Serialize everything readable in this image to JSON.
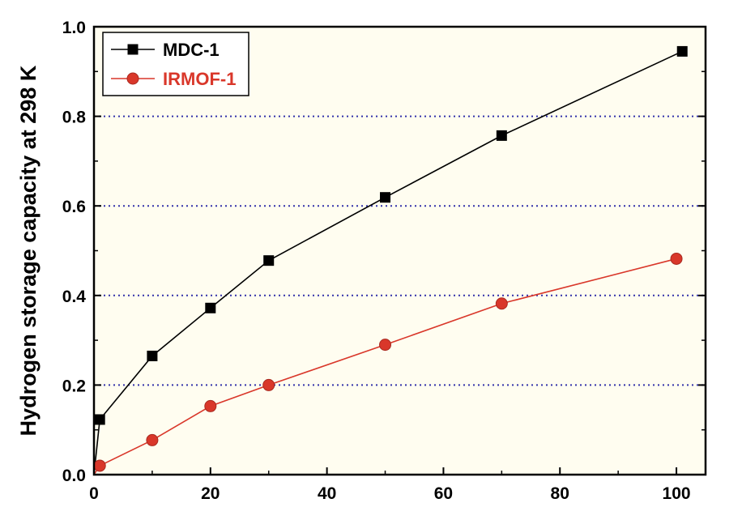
{
  "chart_data": {
    "type": "line",
    "title": "",
    "xlabel": "",
    "ylabel": "Hydrogen storage capacity at 298 K",
    "xlim": [
      0,
      105
    ],
    "ylim": [
      0,
      1.0
    ],
    "xticks": [
      0,
      20,
      40,
      60,
      80,
      100
    ],
    "yticks": [
      0.0,
      0.2,
      0.4,
      0.6,
      0.8,
      1.0
    ],
    "xtick_labels": [
      "0",
      "20",
      "40",
      "60",
      "80",
      "100"
    ],
    "ytick_labels": [
      "0.0",
      "0.2",
      "0.4",
      "0.6",
      "0.8",
      "1.0"
    ],
    "grid": "horizontal dotted at 0.2, 0.4, 0.6, 0.8",
    "legend_position": "top-left",
    "plot_background": "#fffdf0",
    "grid_color": "#3333aa",
    "series": [
      {
        "name": "MDC-1",
        "color": "#000000",
        "marker": "square",
        "x": [
          0,
          1,
          10,
          20,
          30,
          50,
          70,
          101
        ],
        "y": [
          0.0,
          0.123,
          0.265,
          0.372,
          0.478,
          0.619,
          0.757,
          0.945
        ]
      },
      {
        "name": "IRMOF-1",
        "color": "#d9372a",
        "marker": "circle",
        "x": [
          0,
          1,
          10,
          20,
          30,
          50,
          70,
          100
        ],
        "y": [
          0.0,
          0.02,
          0.077,
          0.153,
          0.2,
          0.29,
          0.382,
          0.482
        ]
      }
    ]
  }
}
